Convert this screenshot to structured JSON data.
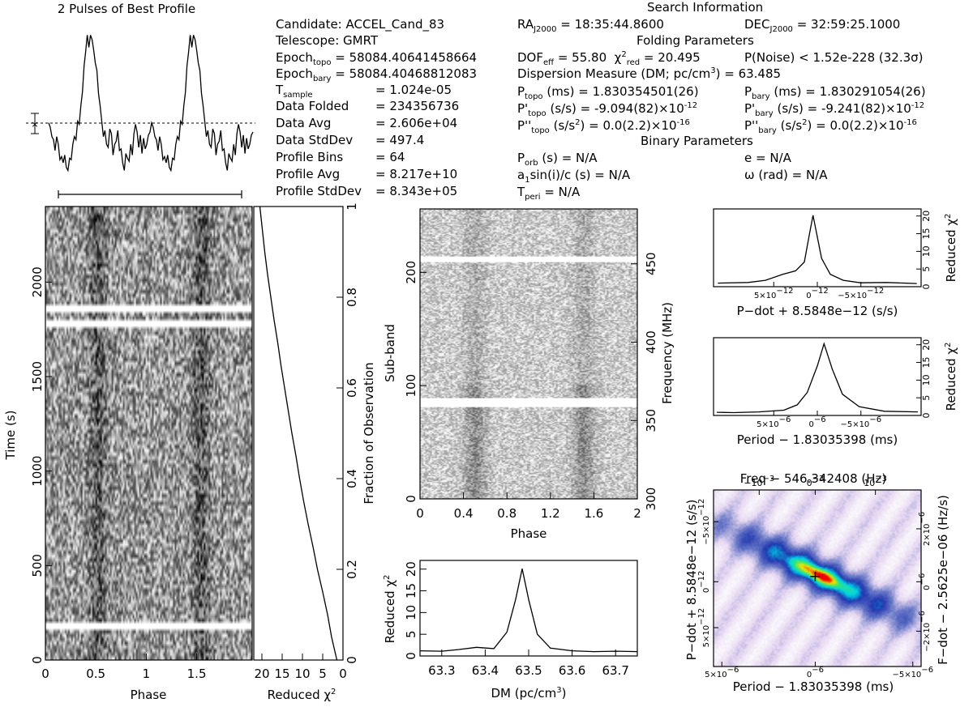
{
  "profile": {
    "title": "2 Pulses of Best Profile",
    "values": [
      0.36,
      0.33,
      0.27,
      0.25,
      0.18,
      0.27,
      0.22,
      0.12,
      0.14,
      0.1,
      0.15,
      0.07,
      0.05,
      0.13,
      0.12,
      0.22,
      0.27,
      0.25,
      0.37,
      0.35,
      0.47,
      0.56,
      0.73,
      0.82,
      0.93,
      0.85,
      0.93,
      0.9,
      0.83,
      0.75,
      0.7,
      0.55,
      0.47,
      0.37,
      0.27,
      0.31,
      0.22,
      0.2,
      0.32,
      0.29,
      0.15,
      0.22,
      0.24,
      0.31,
      0.18,
      0.19,
      0.1,
      0.05,
      0.16,
      0.13,
      0.11,
      0.22,
      0.15,
      0.29,
      0.35,
      0.3,
      0.2,
      0.28,
      0.16,
      0.26,
      0.19,
      0.22,
      0.28,
      0.3,
      0.36,
      0.33,
      0.27,
      0.25,
      0.18,
      0.27,
      0.22,
      0.12,
      0.14,
      0.1,
      0.15,
      0.07,
      0.05,
      0.13,
      0.12,
      0.22,
      0.27,
      0.25,
      0.37,
      0.35,
      0.47,
      0.56,
      0.73,
      0.82,
      0.93,
      0.85,
      0.93,
      0.9,
      0.83,
      0.75,
      0.7,
      0.55,
      0.47,
      0.37,
      0.27,
      0.31,
      0.22,
      0.2,
      0.32,
      0.29,
      0.15,
      0.22,
      0.24,
      0.31,
      0.18,
      0.19,
      0.1,
      0.05,
      0.16,
      0.13,
      0.11,
      0.22,
      0.15,
      0.29,
      0.35,
      0.3,
      0.2,
      0.28,
      0.16,
      0.26,
      0.19,
      0.22,
      0.28,
      0.3
    ]
  },
  "header": {
    "search_information": "Search Information",
    "candidate": "Candidate:  ACCEL_Cand_83",
    "telescope": "Telescope:  GMRT",
    "epoch_topo_label": "Epoch",
    "epoch_topo_sub": "topo",
    "epoch_topo_value": "= 58084.40641458664",
    "epoch_bary_label": "Epoch",
    "epoch_bary_sub": "bary",
    "epoch_bary_value": "= 58084.40468812083",
    "tsample_label": "T",
    "tsample_sub": "sample",
    "tsample_value": "=   1.024e-05",
    "data_folded_label": "Data Folded",
    "data_folded_value": "=   234356736",
    "data_avg_label": "Data Avg",
    "data_avg_value": "=   2.606e+04",
    "data_stddev_label": "Data StdDev",
    "data_stddev_value": "=   497.4",
    "profile_bins_label": "Profile Bins",
    "profile_bins_value": "=   64",
    "profile_avg_label": "Profile Avg",
    "profile_avg_value": "=   8.217e+10",
    "profile_stddev_label": "Profile StdDev",
    "profile_stddev_value": "=   8.343e+05",
    "ra_label": "RA",
    "ra_sub": "J2000",
    "ra_value": "= 18:35:44.8600",
    "dec_label": "DEC",
    "dec_sub": "J2000",
    "dec_value": "= 32:59:25.1000",
    "folding_parameters": "Folding Parameters",
    "dof_label": "DOF",
    "dof_sub": "eff",
    "dof_value": "= 55.80",
    "chi_sym": "χ",
    "chi_sup": "2",
    "chi_sub": "red",
    "chi_value": "= 20.495",
    "pnoise": "P(Noise) < 1.52e-228   (32.3σ)",
    "dm_text": "Dispersion Measure (DM; pc/cm",
    "dm_sup": "3",
    "dm_value": ") = 63.485",
    "ptopo_label": "P",
    "ptopo_sub": "topo",
    "ptopo_value": "(ms)  =  1.830354501(26)",
    "pbary_label": "P",
    "pbary_sub": "bary",
    "pbary_value": "(ms)  =  1.830291054(26)",
    "pdtopo_label": "P'",
    "pdtopo_sub": "topo",
    "pdtopo_value": "(s/s) = -9.094(82)×10",
    "pdtopo_exp": "-12",
    "pdbary_label": "P'",
    "pdbary_sub": "bary",
    "pdbary_value": "(s/s) = -9.241(82)×10",
    "pdbary_exp": "-12",
    "pddtopo_label": "P''",
    "pddtopo_sub": "topo",
    "pddtopo_value": "(s/s",
    "pddtopo_sup": "2",
    "pddtopo_tail": ") = 0.0(2.2)×10",
    "pddtopo_exp": "-16",
    "pddbary_label": "P''",
    "pddbary_sub": "bary",
    "pddbary_value": "(s/s",
    "pddbary_sup": "2",
    "pddbary_tail": ") = 0.0(2.2)×10",
    "pddbary_exp": "-16",
    "binary_parameters": "Binary Parameters",
    "porb_label": "P",
    "porb_sub": "orb",
    "porb_value": "(s)  = N/A",
    "asini_label": "a",
    "asini_sub": "1",
    "asini_value": "sin(i)/c (s) = N/A",
    "tperi_label": "T",
    "tperi_sub": "peri",
    "tperi_value": "= N/A",
    "e_text": "e = N/A",
    "omega_text": "ω (rad) = N/A"
  },
  "time_phase": {
    "xlabel": "Phase",
    "ylabel": "Time (s)",
    "right_label": "Fraction of Observation",
    "x_ticks": [
      "0",
      "0.5",
      "1",
      "1.5"
    ],
    "y_ticks": [
      "0",
      "500",
      "1000",
      "1500",
      "2000"
    ],
    "frac_ticks": [
      "0",
      "0.2",
      "0.4",
      "0.6",
      "0.8",
      "1"
    ],
    "gaps_s": [
      [
        160,
        190
      ],
      [
        1760,
        1790
      ],
      [
        1840,
        1880
      ]
    ],
    "duration_s": 2400
  },
  "chi_time": {
    "xlabel": "Reduced χ",
    "xlabel_sup": "2",
    "x_ticks": [
      "20",
      "15",
      "10",
      "5",
      "0"
    ],
    "points": [
      [
        1.5,
        0.0
      ],
      [
        2.8,
        0.05
      ],
      [
        3.8,
        0.1
      ],
      [
        5.0,
        0.15
      ],
      [
        6.3,
        0.2
      ],
      [
        7.4,
        0.25
      ],
      [
        8.6,
        0.3
      ],
      [
        9.7,
        0.35
      ],
      [
        10.7,
        0.4
      ],
      [
        11.6,
        0.45
      ],
      [
        12.6,
        0.5
      ],
      [
        13.5,
        0.55
      ],
      [
        14.4,
        0.6
      ],
      [
        15.3,
        0.65
      ],
      [
        16.1,
        0.7
      ],
      [
        17.0,
        0.75
      ],
      [
        17.8,
        0.8
      ],
      [
        18.6,
        0.85
      ],
      [
        19.3,
        0.9
      ],
      [
        19.9,
        0.95
      ],
      [
        20.5,
        1.0
      ]
    ]
  },
  "subband": {
    "xlabel": "Phase",
    "ylabel": "Sub-band",
    "right_label": "Frequency (MHz)",
    "x_ticks": [
      "0",
      "0.4",
      "0.8",
      "1.2",
      "1.6",
      "2"
    ],
    "y_ticks": [
      "0",
      "100",
      "200"
    ],
    "freq_ticks": [
      "300",
      "350",
      "400",
      "450"
    ],
    "gaps": [
      [
        81,
        88
      ],
      [
        209,
        213
      ]
    ],
    "nsub": 256
  },
  "dm_chi": {
    "xlabel": "DM (pc/cm",
    "xlabel_sup": "3",
    "xlabel_end": ")",
    "ylabel": "Reduced χ",
    "ylabel_sup": "2",
    "x_ticks": [
      "63.3",
      "63.4",
      "63.5",
      "63.6",
      "63.7"
    ],
    "y_ticks": [
      "0",
      "5",
      "10",
      "15",
      "20"
    ],
    "points": [
      [
        63.25,
        1.2
      ],
      [
        63.3,
        1.1
      ],
      [
        63.34,
        1.5
      ],
      [
        63.38,
        2.0
      ],
      [
        63.42,
        1.7
      ],
      [
        63.45,
        5.5
      ],
      [
        63.47,
        13.0
      ],
      [
        63.485,
        20.1
      ],
      [
        63.5,
        13.0
      ],
      [
        63.52,
        5.0
      ],
      [
        63.55,
        1.8
      ],
      [
        63.6,
        1.2
      ],
      [
        63.65,
        1.0
      ],
      [
        63.7,
        1.1
      ],
      [
        63.75,
        1.0
      ]
    ]
  },
  "pdot_chi": {
    "xlabel": "P−dot + 8.5848e−12 (s/s)",
    "ylabel": "Reduced χ",
    "ylabel_sup": "2",
    "x_ticks": [
      "5×10",
      "0",
      "−5×10"
    ],
    "x_ticks_exp": "−12",
    "y_ticks": [
      "0",
      "5",
      "10",
      "15",
      "20"
    ],
    "points": [
      [
        -1.15e-11,
        0.9
      ],
      [
        -8e-12,
        1.2
      ],
      [
        -5e-12,
        1.1
      ],
      [
        -3e-12,
        1.8
      ],
      [
        -1.5e-12,
        3.5
      ],
      [
        -5e-13,
        8.0
      ],
      [
        2e-13,
        16.5
      ],
      [
        5e-13,
        20.2
      ],
      [
        9e-13,
        15.0
      ],
      [
        1.5e-12,
        7.0
      ],
      [
        2.5e-12,
        4.5
      ],
      [
        4e-12,
        3.5
      ],
      [
        6e-12,
        1.8
      ],
      [
        8e-12,
        1.2
      ],
      [
        1.15e-11,
        1.0
      ]
    ]
  },
  "period_chi": {
    "xlabel": "Period − 1.83035398 (ms)",
    "ylabel": "Reduced χ",
    "ylabel_sup": "2",
    "x_ticks": [
      "5×10",
      "0",
      "−5×10"
    ],
    "x_ticks_exp": "−6",
    "y_ticks": [
      "0",
      "5",
      "10",
      "15",
      "20"
    ],
    "points": [
      [
        -6e-06,
        1.0
      ],
      [
        -4e-06,
        1.2
      ],
      [
        -2.5e-06,
        2.5
      ],
      [
        -1.5e-06,
        6.0
      ],
      [
        -9e-07,
        13.0
      ],
      [
        -4e-07,
        20.3
      ],
      [
        0.0,
        14.0
      ],
      [
        6e-07,
        6.5
      ],
      [
        1.2e-06,
        3.0
      ],
      [
        2e-06,
        1.5
      ],
      [
        3.5e-06,
        1.0
      ],
      [
        5e-06,
        0.8
      ],
      [
        6e-06,
        0.9
      ]
    ]
  },
  "pp_plane": {
    "top_label": "Freq − 546.342408 (Hz)",
    "xlabel": "Period − 1.83035398 (ms)",
    "ylabel": "P−dot + 8.5848e−12 (s/s)",
    "right_label": "F−dot − 2.5625e−06 (Hz/s)",
    "x_ticks": [
      "5×10",
      "0",
      "−5×10"
    ],
    "x_ticks_exp": "−6",
    "top_ticks": [
      "−10",
      "0",
      "10"
    ],
    "top_ticks_exp": "−3",
    "y_ticks": [
      "5×10",
      "0",
      "−5×10"
    ],
    "y_ticks_exp": "−12",
    "fdot_ticks": [
      "−2×10",
      "0",
      "2×10"
    ],
    "fdot_ticks_exp": "−6",
    "best": [
      -4e-07,
      5e-13
    ],
    "colormap": [
      "#ffffff",
      "#e6d7f1",
      "#6978c7",
      "#1f36b0",
      "#00d4e8",
      "#3be86b",
      "#f2e600",
      "#f20000"
    ]
  }
}
